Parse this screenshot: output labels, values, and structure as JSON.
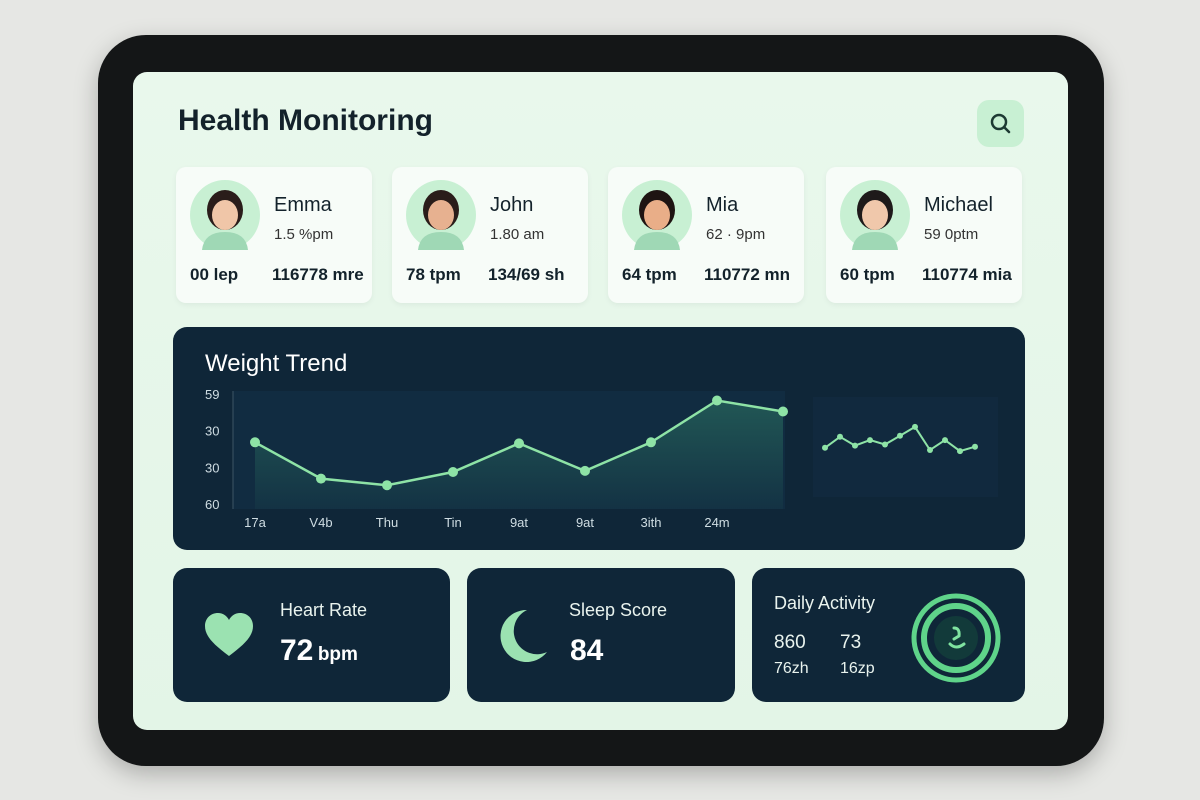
{
  "header": {
    "title": "Health Monitoring"
  },
  "patients": [
    {
      "name": "Emma",
      "detail": "1.5 %pm",
      "stat1": "00 lep",
      "stat2": "116778 mre"
    },
    {
      "name": "John",
      "detail": "1.80 am",
      "stat1": "78 tpm",
      "stat2": "134/69 sh"
    },
    {
      "name": "Mia",
      "detail": "62 · 9pm",
      "stat1": "64 tpm",
      "stat2": "110772 mn"
    },
    {
      "name": "Michael",
      "detail": "59 0ptm",
      "stat1": "60 tpm",
      "stat2": "110774 mia"
    }
  ],
  "chart_data": {
    "type": "line",
    "title": "Weight Trend",
    "categories": [
      "17a",
      "V4b",
      "Thu",
      "Tin",
      "9at",
      "9at",
      "3ith",
      "24m",
      null
    ],
    "values": [
      57,
      24,
      18,
      30,
      56,
      31,
      57,
      95,
      85
    ],
    "spark_values": [
      52,
      62,
      54,
      59,
      55,
      63,
      71,
      50,
      59,
      49,
      53
    ],
    "y_labels": [
      "59",
      "30",
      "30",
      "60"
    ],
    "ylim": [
      0,
      100
    ],
    "color": "#8ee3a6"
  },
  "metrics": {
    "heart": {
      "title": "Heart Rate",
      "value": "72",
      "unit": "bpm"
    },
    "sleep": {
      "title": "Sleep Score",
      "value": "84"
    },
    "activity": {
      "title": "Daily Activity",
      "a": "860",
      "b": "73",
      "c": "76zh",
      "d": "16zp"
    }
  }
}
